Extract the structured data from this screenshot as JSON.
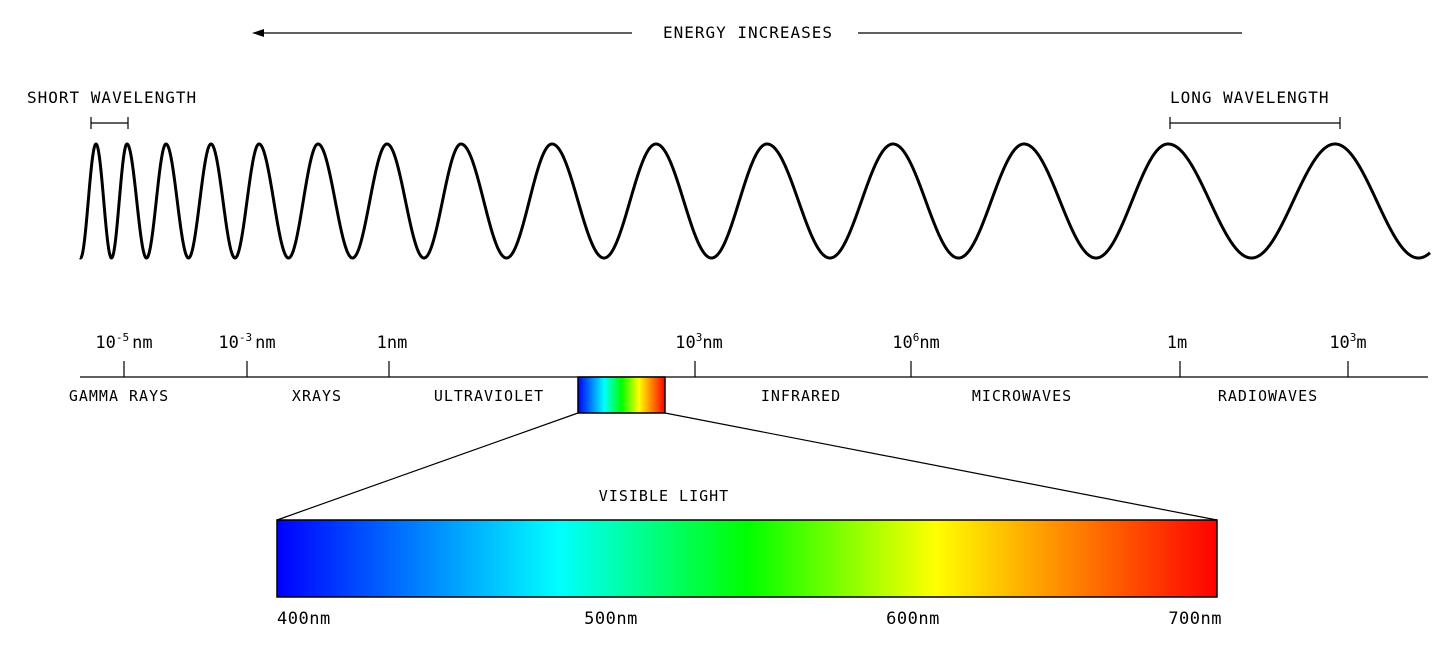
{
  "energy": {
    "label": "ENERGY INCREASES"
  },
  "wavelength": {
    "short_label": "SHORT WAVELENGTH",
    "long_label": "LONG WAVELENGTH"
  },
  "scale": {
    "ticks": [
      {
        "base": "10",
        "exp": "-5",
        "unit": "nm"
      },
      {
        "base": "10",
        "exp": "-3",
        "unit": "nm"
      },
      {
        "base": "",
        "exp": "",
        "unit": "1nm"
      },
      {
        "base": "10",
        "exp": "3",
        "unit": "nm"
      },
      {
        "base": "10",
        "exp": "6",
        "unit": "nm"
      },
      {
        "base": "",
        "exp": "",
        "unit": "1m"
      },
      {
        "base": "10",
        "exp": "3",
        "unit": "m"
      }
    ]
  },
  "bands": [
    {
      "label": "GAMMA RAYS"
    },
    {
      "label": "XRAYS"
    },
    {
      "label": "ULTRAVIOLET"
    },
    {
      "label": "INFRARED"
    },
    {
      "label": "MICROWAVES"
    },
    {
      "label": "RADIOWAVES"
    }
  ],
  "visible": {
    "title": "VISIBLE LIGHT",
    "labels": [
      "400nm",
      "500nm",
      "600nm",
      "700nm"
    ],
    "gradient": [
      {
        "pos": 0.0,
        "color": "#0000ff"
      },
      {
        "pos": 0.3,
        "color": "#00ffff"
      },
      {
        "pos": 0.5,
        "color": "#00ff00"
      },
      {
        "pos": 0.7,
        "color": "#ffff00"
      },
      {
        "pos": 1.0,
        "color": "#ff0000"
      }
    ]
  }
}
